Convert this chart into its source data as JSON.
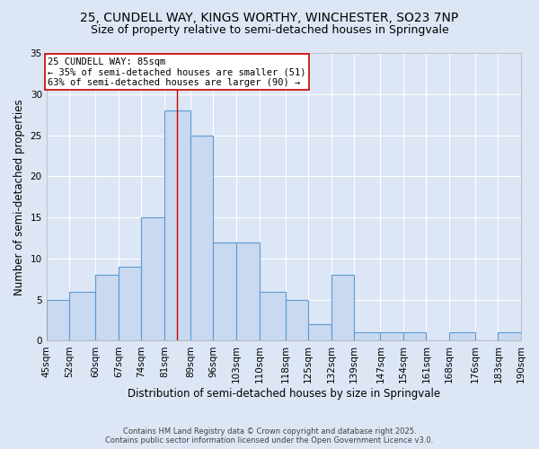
{
  "title1": "25, CUNDELL WAY, KINGS WORTHY, WINCHESTER, SO23 7NP",
  "title2": "Size of property relative to semi-detached houses in Springvale",
  "xlabel": "Distribution of semi-detached houses by size in Springvale",
  "ylabel": "Number of semi-detached properties",
  "bins": [
    45,
    52,
    60,
    67,
    74,
    81,
    89,
    96,
    103,
    110,
    118,
    125,
    132,
    139,
    147,
    154,
    161,
    168,
    176,
    183,
    190
  ],
  "counts": [
    5,
    6,
    8,
    9,
    15,
    28,
    25,
    12,
    12,
    6,
    5,
    2,
    8,
    1,
    1,
    1,
    0,
    1,
    0,
    1
  ],
  "bar_color": "#c9d9f0",
  "bar_edge_color": "#5b9bd5",
  "red_line_x": 85,
  "annotation_text": "25 CUNDELL WAY: 85sqm\n← 35% of semi-detached houses are smaller (51)\n63% of semi-detached houses are larger (90) →",
  "annotation_box_color": "#ffffff",
  "annotation_box_edge": "#cc0000",
  "ylim": [
    0,
    35
  ],
  "yticks": [
    0,
    5,
    10,
    15,
    20,
    25,
    30,
    35
  ],
  "footnote1": "Contains HM Land Registry data © Crown copyright and database right 2025.",
  "footnote2": "Contains public sector information licensed under the Open Government Licence v3.0.",
  "background_color": "#dce6f5",
  "grid_color": "#ffffff",
  "title_fontsize": 10,
  "subtitle_fontsize": 9,
  "axis_label_fontsize": 8.5,
  "tick_label_fontsize": 7.5,
  "annotation_fontsize": 7.5
}
